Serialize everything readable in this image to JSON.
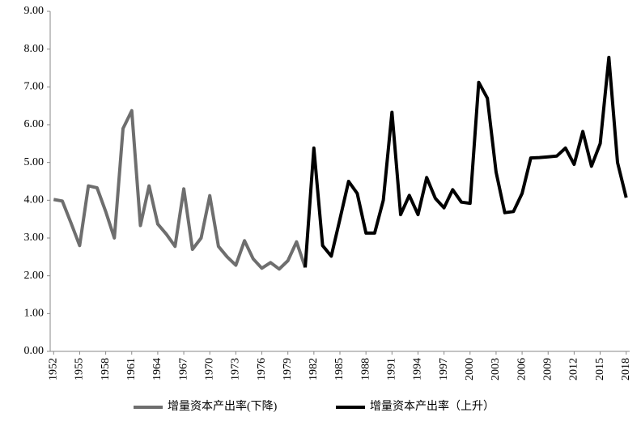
{
  "chart_data": {
    "type": "line",
    "x": [
      1952,
      1953,
      1954,
      1955,
      1956,
      1957,
      1958,
      1959,
      1960,
      1961,
      1962,
      1963,
      1964,
      1965,
      1966,
      1967,
      1968,
      1969,
      1970,
      1971,
      1972,
      1973,
      1974,
      1975,
      1976,
      1977,
      1978,
      1979,
      1980,
      1981,
      1982,
      1983,
      1984,
      1985,
      1986,
      1987,
      1988,
      1989,
      1990,
      1991,
      1992,
      1993,
      1994,
      1995,
      1996,
      1997,
      1998,
      1999,
      2000,
      2001,
      2002,
      2003,
      2004,
      2005,
      2006,
      2007,
      2008,
      2009,
      2010,
      2011,
      2012,
      2013,
      2014,
      2015,
      2016,
      2017,
      2018
    ],
    "series": [
      {
        "name": "增量资本产出率(下降)",
        "color": "#6e6e6e",
        "values": [
          4.02,
          3.98,
          3.4,
          2.8,
          4.38,
          4.33,
          3.7,
          3.0,
          5.9,
          6.37,
          3.33,
          4.38,
          3.37,
          3.1,
          2.78,
          4.3,
          2.7,
          3.0,
          4.12,
          2.78,
          2.5,
          2.28,
          2.93,
          2.45,
          2.2,
          2.35,
          2.18,
          2.4,
          2.9,
          2.22,
          null,
          null,
          null,
          null,
          null,
          null,
          null,
          null,
          null,
          null,
          null,
          null,
          null,
          null,
          null,
          null,
          null,
          null,
          null,
          null,
          null,
          null,
          null,
          null,
          null,
          null,
          null,
          null,
          null,
          null,
          null,
          null,
          null,
          null,
          null,
          null,
          null
        ]
      },
      {
        "name": "增量资本产出率（上升）",
        "color": "#000000",
        "values": [
          null,
          null,
          null,
          null,
          null,
          null,
          null,
          null,
          null,
          null,
          null,
          null,
          null,
          null,
          null,
          null,
          null,
          null,
          null,
          null,
          null,
          null,
          null,
          null,
          null,
          null,
          null,
          null,
          null,
          2.22,
          5.38,
          2.8,
          2.52,
          3.5,
          4.5,
          4.18,
          3.13,
          3.13,
          4.0,
          6.33,
          3.62,
          4.13,
          3.62,
          4.6,
          4.05,
          3.8,
          4.28,
          3.95,
          3.92,
          7.12,
          6.7,
          4.75,
          3.67,
          3.7,
          4.18,
          5.12,
          5.13,
          5.15,
          5.17,
          5.38,
          4.95,
          5.82,
          4.9,
          5.5,
          7.78,
          5.0,
          4.07
        ]
      }
    ],
    "xlim": [
      1951.6,
      2018.4
    ],
    "xticks": [
      1952,
      1955,
      1958,
      1961,
      1964,
      1967,
      1970,
      1973,
      1976,
      1979,
      1982,
      1985,
      1988,
      1991,
      1994,
      1997,
      2000,
      2003,
      2006,
      2009,
      2012,
      2015,
      2018
    ],
    "ylim": [
      0,
      9
    ],
    "yticks": [
      {
        "value": 0,
        "label": "0.00"
      },
      {
        "value": 1,
        "label": "1.00"
      },
      {
        "value": 2,
        "label": "2.00"
      },
      {
        "value": 3,
        "label": "3.00"
      },
      {
        "value": 4,
        "label": "4.00"
      },
      {
        "value": 5,
        "label": "5.00"
      },
      {
        "value": 6,
        "label": "6.00"
      },
      {
        "value": 7,
        "label": "7.00"
      },
      {
        "value": 8,
        "label": "8.00"
      },
      {
        "value": 9,
        "label": "9.00"
      }
    ],
    "grid": false,
    "legend": "bottom"
  }
}
